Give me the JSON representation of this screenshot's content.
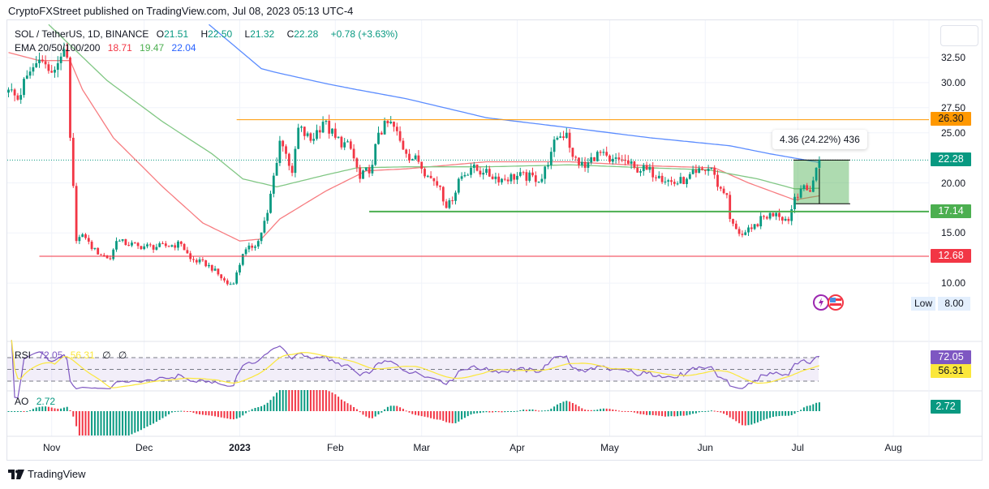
{
  "header": {
    "published": "CryptoFXStreet published on TradingView.com, Jul 08, 2023 05:13 UTC-4"
  },
  "legend": {
    "symbol": "SOL / TetherUS, 1D, BINANCE",
    "open_label": "O",
    "open": "21.51",
    "high_label": "H",
    "high": "22.50",
    "low_label": "L",
    "low": "21.32",
    "close_label": "C",
    "close": "22.28",
    "change": "+0.78 (+3.63%)",
    "ema_label": "EMA 20/50/100/200",
    "ema1": "18.71",
    "ema2": "19.47",
    "ema3": "22.04"
  },
  "rsi_legend": {
    "label": "RSI",
    "value": "72.05",
    "ma": "56.31",
    "x1": "∅",
    "x2": "∅"
  },
  "ao_legend": {
    "label": "AO",
    "value": "2.72"
  },
  "measure": {
    "text": "4.36 (24.22%) 436"
  },
  "low_marker": {
    "label": "Low",
    "value": "8.00"
  },
  "footer": {
    "brand": "TradingView"
  },
  "colors": {
    "up": "#089981",
    "down": "#f23645",
    "ema_red": "#f77c80",
    "ema_green": "#81c784",
    "ema_blue": "#5b8cff",
    "resistance": "#ff9800",
    "support": "#4caf50",
    "low_line": "#f23645",
    "rsi": "#7e57c2",
    "rsi_ma": "#fbe73b"
  },
  "chart_data": {
    "type": "candlestick",
    "title": "SOL / TetherUS, 1D, BINANCE",
    "x_start_date": "2022-10-18",
    "x_ticks": [
      {
        "label": "Nov",
        "day": 14
      },
      {
        "label": "Dec",
        "day": 44
      },
      {
        "label": "2023",
        "day": 75
      },
      {
        "label": "Feb",
        "day": 106
      },
      {
        "label": "Mar",
        "day": 134
      },
      {
        "label": "Apr",
        "day": 165
      },
      {
        "label": "May",
        "day": 195
      },
      {
        "label": "Jun",
        "day": 226
      },
      {
        "label": "Jul",
        "day": 256
      },
      {
        "label": "Aug",
        "day": 287
      }
    ],
    "y_ticks": [
      "32.50",
      "30.00",
      "27.50",
      "25.00",
      "20.00",
      "15.00",
      "10.00"
    ],
    "ylim": [
      7,
      35
    ],
    "close_anchors": [
      [
        0,
        29.3
      ],
      [
        3,
        28.3
      ],
      [
        6,
        30.7
      ],
      [
        10,
        32.3
      ],
      [
        14,
        31
      ],
      [
        17,
        32.6
      ],
      [
        19,
        32.5
      ],
      [
        20,
        24.5
      ],
      [
        22,
        14.2
      ],
      [
        23,
        14.6
      ],
      [
        25,
        14.5
      ],
      [
        27,
        13.4
      ],
      [
        33,
        12.4
      ],
      [
        35,
        14.2
      ],
      [
        42,
        13.7
      ],
      [
        48,
        13.6
      ],
      [
        56,
        13.9
      ],
      [
        59,
        12.4
      ],
      [
        65,
        11.8
      ],
      [
        71,
        9.9
      ],
      [
        73,
        9.95
      ],
      [
        76,
        12.9
      ],
      [
        81,
        14.2
      ],
      [
        84,
        17
      ],
      [
        88,
        24.2
      ],
      [
        90,
        22.9
      ],
      [
        92,
        21
      ],
      [
        94,
        25.5
      ],
      [
        98,
        24.2
      ],
      [
        102,
        26.1
      ],
      [
        106,
        24.5
      ],
      [
        111,
        23.4
      ],
      [
        114,
        20.4
      ],
      [
        118,
        21.8
      ],
      [
        120,
        25
      ],
      [
        124,
        26.1
      ],
      [
        127,
        24.2
      ],
      [
        129,
        22.9
      ],
      [
        133,
        22.1
      ],
      [
        136,
        20.7
      ],
      [
        140,
        19.6
      ],
      [
        142,
        17.5
      ],
      [
        144,
        18.2
      ],
      [
        146,
        20.4
      ],
      [
        150,
        21.5
      ],
      [
        154,
        21
      ],
      [
        160,
        20.4
      ],
      [
        165,
        20.7
      ],
      [
        173,
        20.4
      ],
      [
        176,
        23.1
      ],
      [
        178,
        24.5
      ],
      [
        181,
        25
      ],
      [
        183,
        22.6
      ],
      [
        187,
        21.5
      ],
      [
        191,
        23.1
      ],
      [
        195,
        22.1
      ],
      [
        199,
        22.3
      ],
      [
        203,
        21.5
      ],
      [
        207,
        21.3
      ],
      [
        211,
        20.7
      ],
      [
        216,
        19.9
      ],
      [
        220,
        20.4
      ],
      [
        223,
        21
      ],
      [
        228,
        21.5
      ],
      [
        230,
        19.6
      ],
      [
        233,
        18.8
      ],
      [
        234,
        16.4
      ],
      [
        236,
        15.4
      ],
      [
        238,
        14.8
      ],
      [
        241,
        15.4
      ],
      [
        245,
        16.6
      ],
      [
        249,
        17
      ],
      [
        253,
        16.2
      ],
      [
        255,
        18.6
      ],
      [
        257,
        19.4
      ],
      [
        260,
        19.1
      ],
      [
        262,
        21.5
      ],
      [
        263,
        22.28
      ]
    ],
    "ema_series": [
      {
        "name": "EMA red",
        "value": "18.71",
        "points": [
          [
            0,
            33
          ],
          [
            10,
            32.2
          ],
          [
            20,
            32.2
          ],
          [
            24,
            29.3
          ],
          [
            34,
            24.5
          ],
          [
            50,
            19.6
          ],
          [
            63,
            16
          ],
          [
            75,
            14.2
          ],
          [
            82,
            14.4
          ],
          [
            88,
            16.4
          ],
          [
            103,
            19.2
          ],
          [
            116,
            21.2
          ],
          [
            129,
            21.4
          ],
          [
            155,
            22.1
          ],
          [
            182,
            22.1
          ],
          [
            208,
            21.7
          ],
          [
            229,
            21.5
          ],
          [
            240,
            20
          ],
          [
            255,
            18.3
          ],
          [
            263,
            18.71
          ]
        ]
      },
      {
        "name": "EMA green",
        "value": "19.47",
        "points": [
          [
            13,
            35.8
          ],
          [
            32,
            30.2
          ],
          [
            50,
            26.1
          ],
          [
            66,
            22.9
          ],
          [
            76,
            20.4
          ],
          [
            87,
            19.6
          ],
          [
            103,
            20.8
          ],
          [
            113,
            21.5
          ],
          [
            129,
            21.6
          ],
          [
            155,
            21.6
          ],
          [
            182,
            21.8
          ],
          [
            208,
            21.5
          ],
          [
            227,
            21.3
          ],
          [
            243,
            20.4
          ],
          [
            255,
            19.4
          ],
          [
            263,
            19.47
          ]
        ]
      },
      {
        "name": "EMA blue",
        "value": "22.04",
        "points": [
          [
            65,
            35.8
          ],
          [
            82,
            31.4
          ],
          [
            87,
            31
          ],
          [
            103,
            29.9
          ],
          [
            113,
            29.3
          ],
          [
            129,
            28.4
          ],
          [
            155,
            26.5
          ],
          [
            182,
            25.5
          ],
          [
            208,
            24.5
          ],
          [
            234,
            23.7
          ],
          [
            247,
            22.9
          ],
          [
            263,
            22.04
          ]
        ]
      }
    ],
    "horizontal_levels": [
      {
        "value": 26.3,
        "label": "26.30",
        "from_day": 74
      },
      {
        "value": 17.14,
        "label": "17.14",
        "from_day": 117
      },
      {
        "value": 12.68,
        "label": "12.68",
        "from_day": 10
      }
    ],
    "last_price": {
      "value": 22.28,
      "label": "22.28"
    },
    "measure_box": {
      "from_day": 255,
      "to_day": 273,
      "top": 22.28,
      "bottom": 17.92
    },
    "rsi": {
      "value": "72.05",
      "ma": "56.31",
      "bands": [
        30,
        50,
        70
      ]
    },
    "ao": {
      "value": "2.72"
    }
  }
}
